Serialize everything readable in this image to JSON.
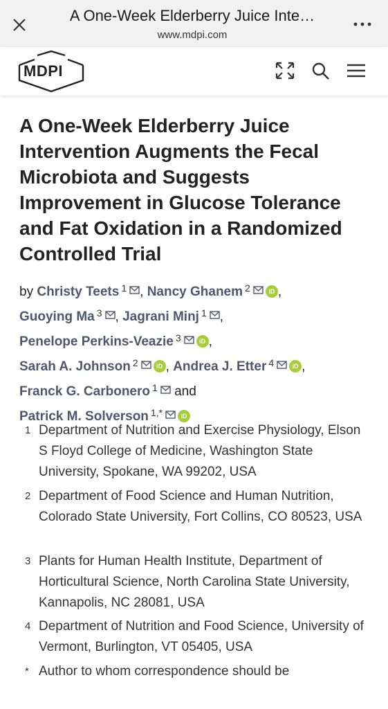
{
  "browser": {
    "title": "A One-Week Elderberry Juice Inte…",
    "url": "www.mdpi.com"
  },
  "header": {
    "logo_text": "MDPI"
  },
  "article": {
    "title": "A One-Week Elderberry Juice Intervention Augments the Fecal Microbiota and Suggests Improvement in Glucose Tolerance and Fat Oxidation in a Randomized Controlled Trial"
  },
  "authors": {
    "by": "by ",
    "list": [
      {
        "name": "Christy Teets",
        "sup": "1"
      },
      {
        "name": "Nancy Ghanem",
        "sup": "2"
      },
      {
        "name": "Guoying Ma",
        "sup": "3"
      },
      {
        "name": "Jagrani Minj",
        "sup": "1"
      },
      {
        "name": "Penelope Perkins-Veazie",
        "sup": "3"
      },
      {
        "name": "Sarah A. Johnson",
        "sup": "2"
      },
      {
        "name": "Andrea J. Etter",
        "sup": "4"
      },
      {
        "name": "Franck G. Carbonero",
        "sup": "1"
      },
      {
        "name": "Patrick M. Solverson",
        "sup": "1,*"
      }
    ],
    "and": "and",
    "orcid_label": "iD"
  },
  "affiliations": [
    {
      "num": "1",
      "text": "Department of Nutrition and Exercise Physiology, Elson S Floyd College of Medicine, Washington State University, Spokane, WA 99202, USA"
    },
    {
      "num": "2",
      "text": "Department of Food Science and Human Nutrition, Colorado State University, Fort Collins, CO 80523, USA"
    },
    {
      "num": "3",
      "text": "Plants for Human Health Institute, Department of Horticultural Science, North Carolina State University, Kannapolis, NC 28081, USA"
    },
    {
      "num": "4",
      "text": "Department of Nutrition and Food Science, University of Vermont, Burlington, VT 05405, USA"
    },
    {
      "num": "*",
      "text": "Author to whom correspondence should be"
    }
  ]
}
